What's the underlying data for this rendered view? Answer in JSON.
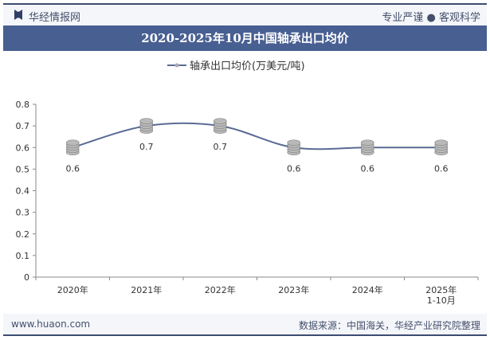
{
  "header": {
    "brand": "华经情报网",
    "slogan": "专业严谨 ● 客观科学"
  },
  "title": "2020-2025年10月中国轴承出口均价",
  "footer": {
    "website": "www.huaon.com",
    "source": "数据来源：中国海关，华经产业研究院整理"
  },
  "colors": {
    "title_bar": "#485f92",
    "line": "#5a6b94",
    "marker": "#b9b9b9"
  },
  "chart_data": {
    "type": "line",
    "title": "2020-2025年10月中国轴承出口均价",
    "categories": [
      "2020年",
      "2021年",
      "2022年",
      "2023年",
      "2024年",
      "2025年\n1-10月"
    ],
    "series": [
      {
        "name": "轴承出口均价(万美元/吨)",
        "values": [
          0.6,
          0.7,
          0.7,
          0.6,
          0.6,
          0.6
        ]
      }
    ],
    "data_labels": [
      "0.6",
      "0.7",
      "0.7",
      "0.6",
      "0.6",
      "0.6"
    ],
    "ylim": [
      0,
      0.8
    ],
    "yticks": [
      "0",
      "0.1",
      "0.2",
      "0.3",
      "0.4",
      "0.5",
      "0.6",
      "0.7",
      "0.8"
    ],
    "smooth": true,
    "grid": false,
    "legend": "top",
    "marker": "coin-stack-icon"
  }
}
